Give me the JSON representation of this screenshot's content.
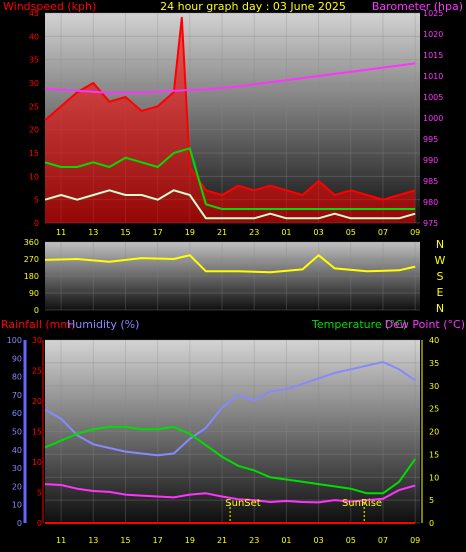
{
  "colors": {
    "background": "#000000",
    "wind_label": "#ff0000",
    "title": "#ffff00",
    "baro_label": "#ff33ff",
    "wind_trace": "#ff0000",
    "avg_trace": "#00dd00",
    "low_trace": "#ccffcc",
    "baro_trace": "#ff33ff",
    "dir_trace": "#ffff00",
    "humidity": "#8888ff",
    "temperature": "#00dd00",
    "dewpoint": "#ff33ff",
    "rainfall": "#ff0000",
    "sun_marker": "#ffff00",
    "tick_text": "#ffff00"
  },
  "chart_data": [
    {
      "type": "line",
      "title": "24 hour graph day : 03 June 2025",
      "ylabel_left": "Windspeed (kph)",
      "ylabel_right": "Barometer (hpa)",
      "x_ticks": [
        "11",
        "13",
        "15",
        "17",
        "19",
        "21",
        "23",
        "01",
        "03",
        "05",
        "07",
        "09"
      ],
      "ylim_left": [
        0,
        45
      ],
      "y_ticks_left": [
        "0",
        "5",
        "10",
        "15",
        "20",
        "25",
        "30",
        "35",
        "40",
        "45"
      ],
      "ylim_right": [
        975,
        1025
      ],
      "y_ticks_right": [
        "975",
        "980",
        "985",
        "990",
        "995",
        "1000",
        "1005",
        "1010",
        "1015",
        "1020",
        "1025"
      ],
      "grid": true,
      "series": [
        {
          "key": "gust",
          "axis": "left",
          "x": [
            "10:00",
            "11:00",
            "12:00",
            "13:00",
            "14:00",
            "15:00",
            "16:00",
            "17:00",
            "18:00",
            "18:30",
            "19:00",
            "20:00",
            "21:00",
            "22:00",
            "23:00",
            "00:00",
            "01:00",
            "02:00",
            "03:00",
            "04:00",
            "05:00",
            "06:00",
            "07:00",
            "08:00",
            "09:00"
          ],
          "values": [
            22,
            25,
            28,
            30,
            26,
            27,
            24,
            25,
            28,
            44,
            12,
            7,
            6,
            8,
            7,
            8,
            7,
            6,
            9,
            6,
            7,
            6,
            5,
            6,
            7
          ]
        },
        {
          "key": "avg",
          "axis": "left",
          "x": [
            "10:00",
            "11:00",
            "12:00",
            "13:00",
            "14:00",
            "15:00",
            "16:00",
            "17:00",
            "18:00",
            "19:00",
            "20:00",
            "21:00",
            "22:00",
            "23:00",
            "00:00",
            "01:00",
            "02:00",
            "03:00",
            "04:00",
            "05:00",
            "06:00",
            "07:00",
            "08:00",
            "09:00"
          ],
          "values": [
            13,
            12,
            12,
            13,
            12,
            14,
            13,
            12,
            15,
            16,
            4,
            3,
            3,
            3,
            3,
            3,
            3,
            3,
            3,
            3,
            3,
            3,
            3,
            3
          ]
        },
        {
          "key": "lull",
          "axis": "left",
          "x": [
            "10:00",
            "11:00",
            "12:00",
            "13:00",
            "14:00",
            "15:00",
            "16:00",
            "17:00",
            "18:00",
            "19:00",
            "20:00",
            "21:00",
            "22:00",
            "23:00",
            "00:00",
            "01:00",
            "02:00",
            "03:00",
            "04:00",
            "05:00",
            "06:00",
            "07:00",
            "08:00",
            "09:00"
          ],
          "values": [
            5,
            6,
            5,
            6,
            7,
            6,
            6,
            5,
            7,
            6,
            1,
            1,
            1,
            1,
            2,
            1,
            1,
            1,
            2,
            1,
            1,
            1,
            1,
            2
          ]
        },
        {
          "key": "baro",
          "axis": "right",
          "x": [
            "10:00",
            "12:00",
            "14:00",
            "16:00",
            "18:00",
            "20:00",
            "22:00",
            "00:00",
            "02:00",
            "04:00",
            "06:00",
            "08:00",
            "09:00"
          ],
          "values": [
            1007,
            1006.5,
            1006,
            1006,
            1006.5,
            1006.8,
            1007.5,
            1008.5,
            1009.5,
            1010.5,
            1011.5,
            1012.5,
            1013
          ]
        }
      ]
    },
    {
      "type": "line",
      "ylabel_right": [
        "N",
        "W",
        "S",
        "E",
        "N"
      ],
      "x_ticks": [],
      "ylim": [
        0,
        360
      ],
      "y_ticks": [
        "0",
        "90",
        "180",
        "270",
        "360"
      ],
      "grid": true,
      "series": [
        {
          "key": "direction",
          "x": [
            "10:00",
            "12:00",
            "14:00",
            "16:00",
            "18:00",
            "19:00",
            "20:00",
            "22:00",
            "00:00",
            "02:00",
            "03:00",
            "04:00",
            "06:00",
            "08:00",
            "09:00"
          ],
          "values": [
            265,
            270,
            255,
            275,
            270,
            290,
            205,
            205,
            200,
            215,
            290,
            220,
            205,
            210,
            230
          ]
        }
      ]
    },
    {
      "type": "line",
      "ylabel_left": [
        "Rainfall (mm)",
        "Humidity (%)"
      ],
      "ylabel_right": [
        "Temperature (°C)",
        "Dew Point (°C)"
      ],
      "x_ticks": [
        "11",
        "13",
        "15",
        "17",
        "19",
        "21",
        "23",
        "01",
        "03",
        "05",
        "07",
        "09"
      ],
      "ylim_rain": [
        0,
        30
      ],
      "y_ticks_rain": [
        "0",
        "5",
        "10",
        "15",
        "20",
        "25",
        "30"
      ],
      "ylim_humidity": [
        0,
        100
      ],
      "y_ticks_humidity": [
        "0",
        "10",
        "20",
        "30",
        "40",
        "50",
        "60",
        "70",
        "80",
        "90",
        "100"
      ],
      "ylim_temp": [
        0,
        40
      ],
      "y_ticks_temp": [
        "0",
        "5",
        "10",
        "15",
        "20",
        "25",
        "30",
        "35",
        "40"
      ],
      "annotations": [
        "SunSet",
        "SunRise"
      ],
      "grid": true,
      "series": [
        {
          "key": "humidity",
          "axis": "humidity",
          "x": [
            "10:00",
            "11:00",
            "12:00",
            "13:00",
            "14:00",
            "15:00",
            "16:00",
            "17:00",
            "18:00",
            "19:00",
            "20:00",
            "21:00",
            "22:00",
            "23:00",
            "00:00",
            "01:00",
            "02:00",
            "03:00",
            "04:00",
            "05:00",
            "06:00",
            "07:00",
            "08:00",
            "09:00"
          ],
          "values": [
            62,
            57,
            48,
            43,
            41,
            39,
            38,
            37,
            38,
            46,
            52,
            63,
            70,
            67,
            72,
            73,
            76,
            79,
            82,
            84,
            86,
            88,
            84,
            78
          ]
        },
        {
          "key": "temperature",
          "axis": "temp",
          "x": [
            "10:00",
            "11:00",
            "12:00",
            "13:00",
            "14:00",
            "15:00",
            "16:00",
            "17:00",
            "18:00",
            "19:00",
            "20:00",
            "21:00",
            "22:00",
            "23:00",
            "00:00",
            "01:00",
            "02:00",
            "03:00",
            "04:00",
            "05:00",
            "06:00",
            "07:00",
            "08:00",
            "09:00"
          ],
          "values": [
            16.5,
            18,
            19.5,
            20.5,
            21,
            21,
            20.5,
            20.5,
            21,
            19.5,
            17,
            14.5,
            12.5,
            11.5,
            10,
            9.5,
            9,
            8.5,
            8,
            7.5,
            6.5,
            6.5,
            9,
            14
          ]
        },
        {
          "key": "dewpoint",
          "axis": "temp",
          "x": [
            "10:00",
            "11:00",
            "12:00",
            "13:00",
            "14:00",
            "15:00",
            "16:00",
            "17:00",
            "18:00",
            "19:00",
            "20:00",
            "21:00",
            "22:00",
            "23:00",
            "00:00",
            "01:00",
            "02:00",
            "03:00",
            "04:00",
            "05:00",
            "06:00",
            "07:00",
            "08:00",
            "09:00"
          ],
          "values": [
            8.5,
            8.3,
            7.5,
            7,
            6.8,
            6.2,
            6,
            5.8,
            5.6,
            6.2,
            6.5,
            5.8,
            5.2,
            5,
            4.6,
            4.8,
            4.6,
            4.5,
            5,
            4.7,
            5,
            5.3,
            7.2,
            8.2
          ]
        },
        {
          "key": "rainfall",
          "axis": "rain",
          "x": [
            "10:00",
            "09:00"
          ],
          "values": [
            0,
            0
          ]
        }
      ]
    }
  ]
}
